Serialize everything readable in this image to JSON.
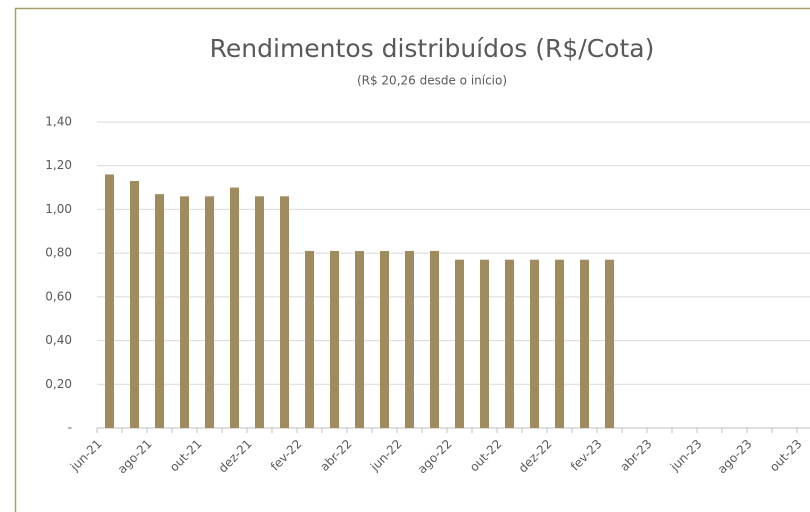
{
  "chart_data": {
    "type": "bar",
    "title": "Rendimentos distribuídos (R$/Cota)",
    "subtitle": "(R$ 20,26 desde o início)",
    "categories": [
      "jun-21",
      null,
      "ago-21",
      null,
      "out-21",
      null,
      "dez-21",
      null,
      "fev-22",
      null,
      "abr-22",
      null,
      "jun-22",
      null,
      "ago-22",
      null,
      "out-22",
      null,
      "dez-22",
      null,
      "fev-23",
      null,
      "abr-23",
      null,
      "jun-23",
      null,
      "ago-23",
      null,
      "out-23"
    ],
    "values": [
      1.16,
      1.13,
      1.07,
      1.06,
      1.06,
      1.1,
      1.06,
      1.06,
      0.81,
      0.81,
      0.81,
      0.81,
      0.81,
      0.81,
      0.77,
      0.77,
      0.77,
      0.77,
      0.77,
      0.77,
      0.77,
      null,
      null,
      null,
      null,
      null,
      null,
      null,
      null
    ],
    "color": "#a08b5f",
    "ylim": [
      0,
      1.4
    ],
    "yticks": [
      {
        "value": 0,
        "label": "-"
      },
      {
        "value": 0.2,
        "label": "0,20"
      },
      {
        "value": 0.4,
        "label": "0,40"
      },
      {
        "value": 0.6,
        "label": "0,60"
      },
      {
        "value": 0.8,
        "label": "0,80"
      },
      {
        "value": 1.0,
        "label": "1,00"
      },
      {
        "value": 1.2,
        "label": "1,20"
      },
      {
        "value": 1.4,
        "label": "1,40"
      }
    ],
    "grid": true
  }
}
